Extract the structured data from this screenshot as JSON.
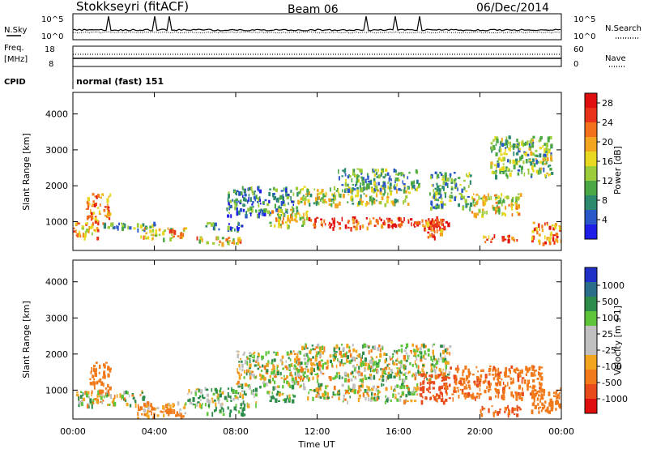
{
  "header": {
    "station": "Stokkseyri (fitACF)",
    "beam": "Beam 06",
    "date": "06/Dec/2014"
  },
  "status_panels": {
    "nsky_label": "N.Sky",
    "nsearch_label": "N.Search",
    "noise_ticks": [
      "10^5",
      "10^0"
    ],
    "freq_label_1": "Freq.",
    "freq_label_2": "[MHz]",
    "freq_ticks": [
      "18",
      "8"
    ],
    "nave_label": "Nave",
    "nave_ticks": [
      "60",
      "0"
    ],
    "cpid_label": "CPID",
    "cpid_value": "normal (fast) 151"
  },
  "chart_data": [
    {
      "type": "heatmap",
      "name": "power",
      "ylabel": "Slant Range [km]",
      "ylim": [
        200,
        4600
      ],
      "yticks": [
        "1000",
        "2000",
        "3000",
        "4000"
      ],
      "xlim_hours": [
        0,
        24
      ],
      "colorbar": {
        "label": "Power [dB]",
        "ticks": [
          "4",
          "8",
          "12",
          "16",
          "20",
          "24",
          "28"
        ],
        "range": [
          0,
          30
        ],
        "colors": [
          "#1e1ee8",
          "#2a58c8",
          "#2d8a6e",
          "#4aa845",
          "#9ccc3a",
          "#e8d820",
          "#f2a51f",
          "#f2711a",
          "#e8321a",
          "#e00f0f"
        ]
      },
      "echo_regions": [
        {
          "t0": 0.0,
          "t1": 1.2,
          "r0": 550,
          "r1": 1000,
          "level": 20
        },
        {
          "t0": 0.6,
          "t1": 1.8,
          "r0": 950,
          "r1": 1800,
          "level": 22
        },
        {
          "t0": 1.5,
          "t1": 4.0,
          "r0": 800,
          "r1": 1000,
          "level": 10
        },
        {
          "t0": 3.2,
          "t1": 5.6,
          "r0": 550,
          "r1": 850,
          "level": 18
        },
        {
          "t0": 6.0,
          "t1": 8.2,
          "r0": 380,
          "r1": 600,
          "level": 18
        },
        {
          "t0": 6.5,
          "t1": 8.5,
          "r0": 800,
          "r1": 1000,
          "level": 8
        },
        {
          "t0": 7.5,
          "t1": 11.0,
          "r0": 1200,
          "r1": 2000,
          "level": 8
        },
        {
          "t0": 9.5,
          "t1": 11.5,
          "r0": 900,
          "r1": 1400,
          "level": 16
        },
        {
          "t0": 11.0,
          "t1": 16.5,
          "r0": 1500,
          "r1": 2000,
          "level": 14
        },
        {
          "t0": 11.5,
          "t1": 18.5,
          "r0": 850,
          "r1": 1150,
          "level": 26
        },
        {
          "t0": 13.0,
          "t1": 17.0,
          "r0": 1900,
          "r1": 2500,
          "level": 10
        },
        {
          "t0": 17.2,
          "t1": 18.2,
          "r0": 600,
          "r1": 1100,
          "level": 24
        },
        {
          "t0": 17.5,
          "t1": 19.5,
          "r0": 1400,
          "r1": 2400,
          "level": 10
        },
        {
          "t0": 19.5,
          "t1": 22.0,
          "r0": 1200,
          "r1": 1800,
          "level": 16
        },
        {
          "t0": 20.0,
          "t1": 21.8,
          "r0": 450,
          "r1": 650,
          "level": 24
        },
        {
          "t0": 22.5,
          "t1": 24.0,
          "r0": 400,
          "r1": 1000,
          "level": 22
        },
        {
          "t0": 20.5,
          "t1": 23.5,
          "r0": 2300,
          "r1": 3400,
          "level": 12
        }
      ]
    },
    {
      "type": "heatmap",
      "name": "velocity",
      "ylabel": "Slant Range [km]",
      "ylim": [
        200,
        4600
      ],
      "yticks": [
        "1000",
        "2000",
        "3000",
        "4000"
      ],
      "xlabel": "Time UT",
      "xticks": [
        "00:00",
        "04:00",
        "08:00",
        "12:00",
        "16:00",
        "20:00",
        "00:00"
      ],
      "xlim_hours": [
        0,
        24
      ],
      "colorbar": {
        "label": "Velocity [m s-1]",
        "ticks": [
          "1000",
          "500",
          "100",
          "25",
          "-25",
          "-100",
          "-500",
          "-1000"
        ],
        "colors": [
          "#2030c8",
          "#2a6e8a",
          "#2e8c4a",
          "#5ec43a",
          "#c0c0c0",
          "#c0c0c0",
          "#f2a51f",
          "#f27a1a",
          "#e84a1a",
          "#e00f0f"
        ]
      },
      "echo_regions": [
        {
          "t0": 0.0,
          "t1": 3.5,
          "r0": 600,
          "r1": 1000,
          "level": 0
        },
        {
          "t0": 0.8,
          "t1": 1.8,
          "r0": 1000,
          "r1": 1800,
          "level": -300
        },
        {
          "t0": 3.0,
          "t1": 5.5,
          "r0": 250,
          "r1": 700,
          "level": -150
        },
        {
          "t0": 5.5,
          "t1": 9.0,
          "r0": 600,
          "r1": 1100,
          "level": 60
        },
        {
          "t0": 6.5,
          "t1": 8.5,
          "r0": 350,
          "r1": 550,
          "level": 200
        },
        {
          "t0": 8.0,
          "t1": 11.5,
          "r0": 1100,
          "r1": 2100,
          "level": 0
        },
        {
          "t0": 9.5,
          "t1": 11.0,
          "r0": 700,
          "r1": 1000,
          "level": 80
        },
        {
          "t0": 11.0,
          "t1": 18.5,
          "r0": 1300,
          "r1": 2300,
          "level": 0
        },
        {
          "t0": 11.5,
          "t1": 17.0,
          "r0": 700,
          "r1": 1200,
          "level": 0
        },
        {
          "t0": 17.0,
          "t1": 18.5,
          "r0": 700,
          "r1": 1500,
          "level": -600
        },
        {
          "t0": 18.5,
          "t1": 23.0,
          "r0": 800,
          "r1": 1700,
          "level": -400
        },
        {
          "t0": 20.0,
          "t1": 22.0,
          "r0": 350,
          "r1": 600,
          "level": -500
        },
        {
          "t0": 22.5,
          "t1": 24.0,
          "r0": 400,
          "r1": 1100,
          "level": -300
        }
      ]
    }
  ]
}
